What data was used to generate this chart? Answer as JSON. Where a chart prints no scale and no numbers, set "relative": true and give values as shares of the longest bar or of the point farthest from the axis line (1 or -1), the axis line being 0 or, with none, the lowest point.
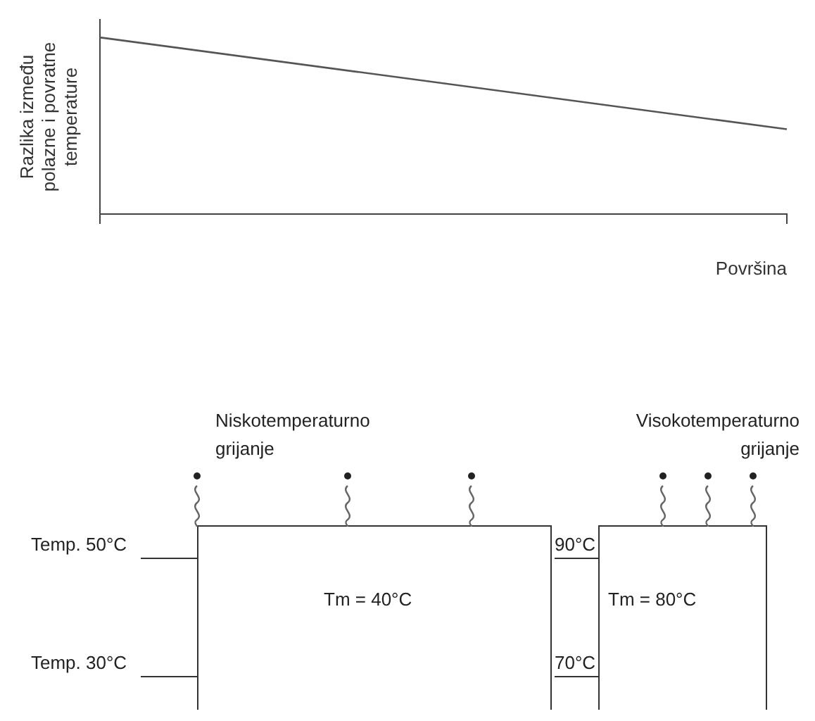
{
  "chart_data": [
    {
      "type": "line",
      "relative": true,
      "xlabel": "Površina",
      "ylabel": "Razlika između polazne i povratne temperature",
      "categories": [
        null,
        null
      ],
      "grid": false,
      "legend": false,
      "marker": "none",
      "series": [
        {
          "color": "#555555",
          "values": [
            1,
            0.48
          ]
        }
      ]
    },
    {
      "type": "other",
      "annotations": [
        "Niskotemperaturno grijanje",
        "Visokotemperaturno grijanje",
        "Temp. 50°C",
        "Temp. 30°C",
        "Tm = 40°C",
        "90°C",
        "70°C",
        "Tm = 80°C"
      ]
    }
  ]
}
